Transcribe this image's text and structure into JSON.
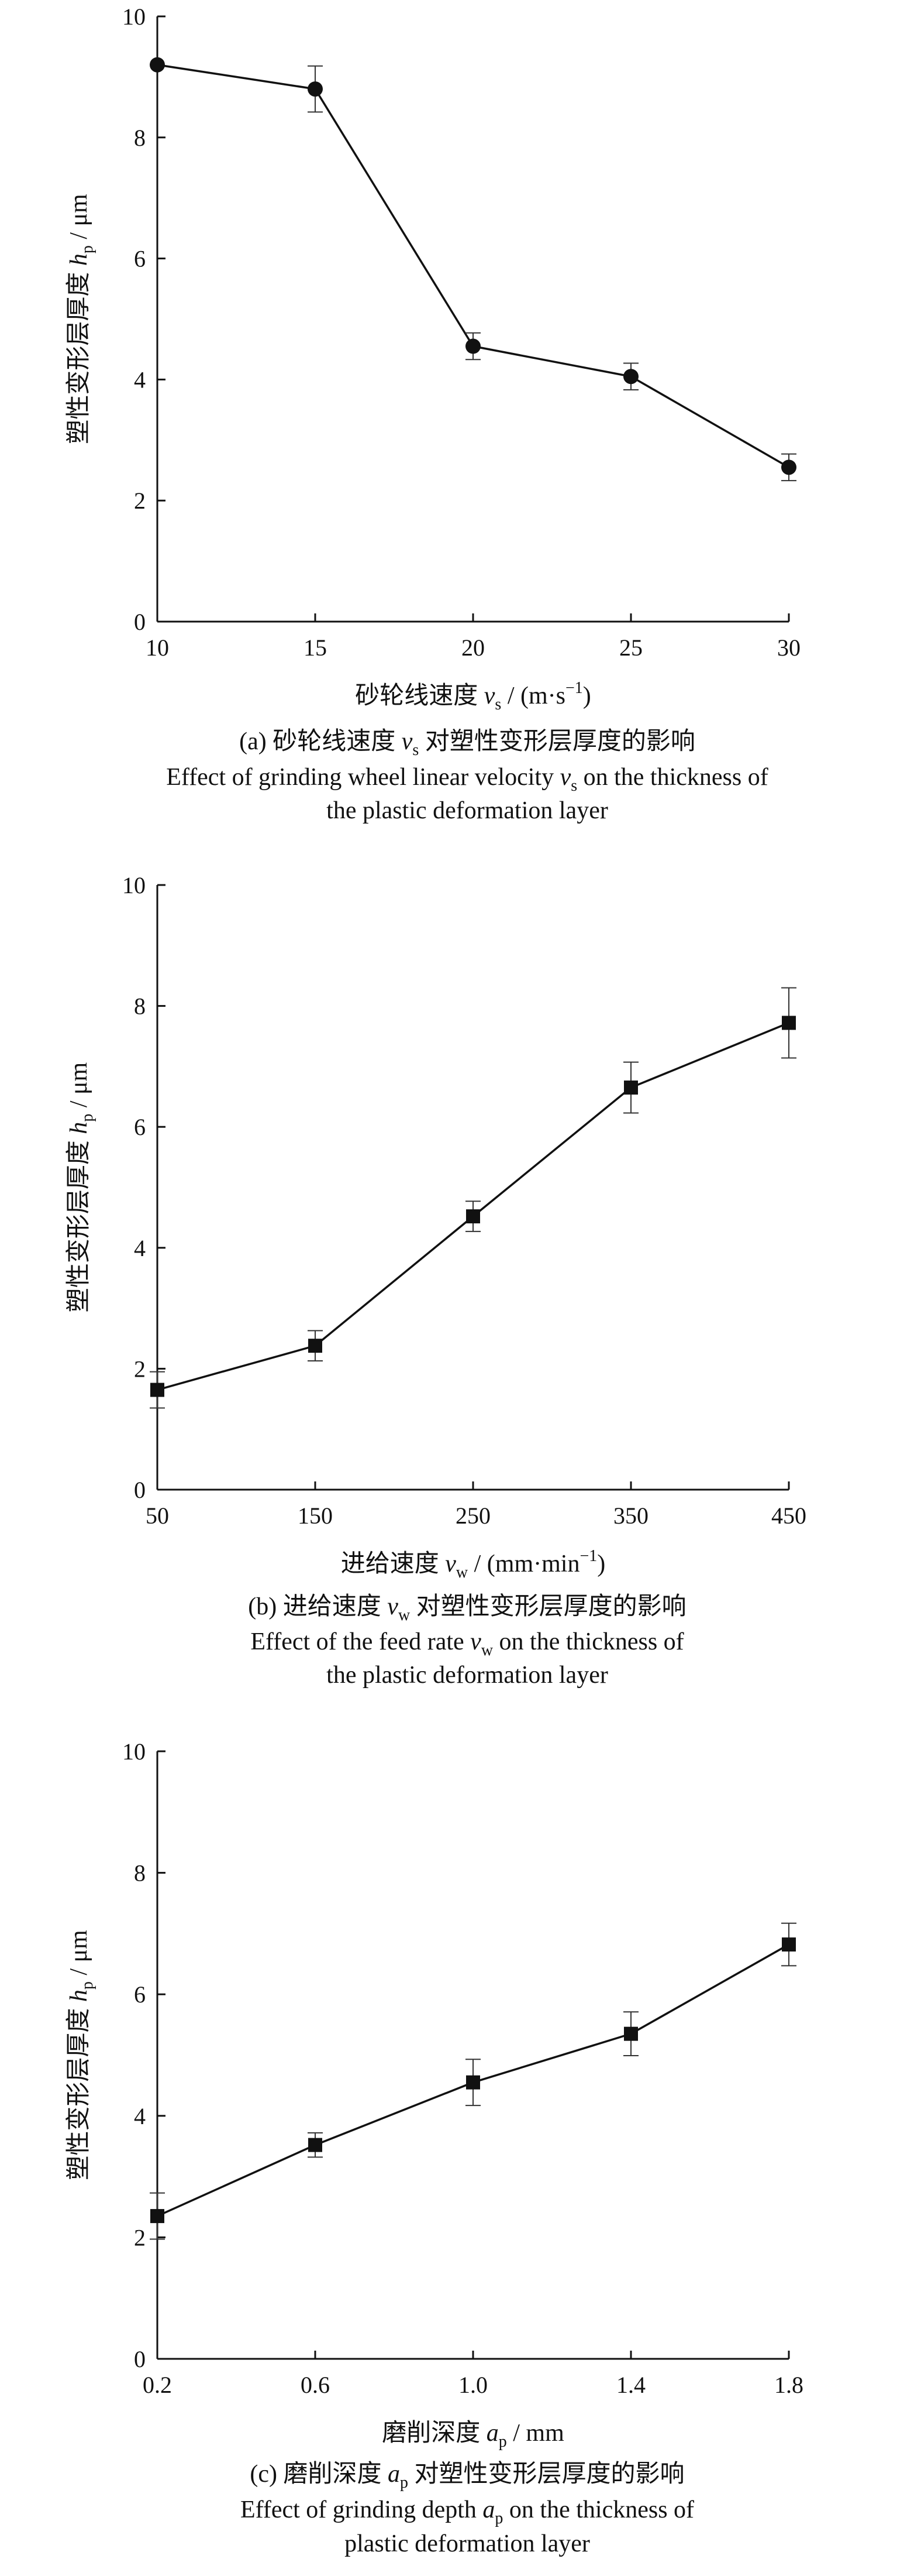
{
  "chart_data": [
    {
      "type": "line",
      "panel": "a",
      "x": [
        10,
        15,
        20,
        25,
        30
      ],
      "series": [
        {
          "values": [
            9.2,
            8.8,
            4.55,
            4.05,
            2.55
          ],
          "errors": [
            0.0,
            0.38,
            0.22,
            0.22,
            0.22
          ]
        }
      ],
      "marker": "circle",
      "xticks": [
        "10",
        "15",
        "20",
        "25",
        "30"
      ],
      "xlim": [
        10,
        30
      ],
      "yticks": [
        "0",
        "2",
        "4",
        "6",
        "8",
        "10"
      ],
      "ylim": [
        0,
        10
      ],
      "xlabel": {
        "main": "砂轮线速度 ",
        "sym": "v",
        "sub": "s",
        "unit": " / (m·s",
        "sup": "−1",
        "close": ")"
      },
      "ylabel": {
        "main": "塑性变形层厚度 ",
        "sym": "h",
        "sub": "p",
        "unit": " / μm"
      },
      "caption": {
        "zh_prefix": "(a) 砂轮线速度 ",
        "zh_sym": "v",
        "zh_sub": "s",
        "zh_suffix": " 对塑性变形层厚度的影响",
        "en1_prefix": "Effect of grinding wheel linear velocity ",
        "en1_sym": "v",
        "en1_sub": "s",
        "en1_suffix": " on the thickness of",
        "en2": "the plastic deformation layer"
      }
    },
    {
      "type": "line",
      "panel": "b",
      "x": [
        50,
        150,
        250,
        350,
        450
      ],
      "series": [
        {
          "values": [
            1.65,
            2.38,
            4.52,
            6.65,
            7.72
          ],
          "errors": [
            0.3,
            0.25,
            0.25,
            0.42,
            0.58
          ]
        }
      ],
      "marker": "square",
      "xticks": [
        "50",
        "150",
        "250",
        "350",
        "450"
      ],
      "xlim": [
        50,
        450
      ],
      "yticks": [
        "0",
        "2",
        "4",
        "6",
        "8",
        "10"
      ],
      "ylim": [
        0,
        10
      ],
      "xlabel": {
        "main": "进给速度 ",
        "sym": "v",
        "sub": "w",
        "unit": " / (mm·min",
        "sup": "−1",
        "close": ")"
      },
      "ylabel": {
        "main": "塑性变形层厚度 ",
        "sym": "h",
        "sub": "p",
        "unit": " / μm"
      },
      "caption": {
        "zh_prefix": "(b) 进给速度 ",
        "zh_sym": "v",
        "zh_sub": "w",
        "zh_suffix": " 对塑性变形层厚度的影响",
        "en1_prefix": "Effect of the feed rate ",
        "en1_sym": "v",
        "en1_sub": "w",
        "en1_suffix": " on the thickness of",
        "en2": "the plastic deformation layer"
      }
    },
    {
      "type": "line",
      "panel": "c",
      "x": [
        0.2,
        0.6,
        1.0,
        1.4,
        1.8
      ],
      "series": [
        {
          "values": [
            2.35,
            3.52,
            4.55,
            5.35,
            6.82
          ],
          "errors": [
            0.38,
            0.2,
            0.38,
            0.36,
            0.35
          ]
        }
      ],
      "marker": "square",
      "xticks": [
        "0.2",
        "0.6",
        "1.0",
        "1.4",
        "1.8"
      ],
      "xlim": [
        0.2,
        1.8
      ],
      "yticks": [
        "0",
        "2",
        "4",
        "6",
        "8",
        "10"
      ],
      "ylim": [
        0,
        10
      ],
      "xlabel": {
        "main": "磨削深度 ",
        "sym": "a",
        "sub": "p",
        "unit": " / mm",
        "sup": "",
        "close": ""
      },
      "ylabel": {
        "main": "塑性变形层厚度 ",
        "sym": "h",
        "sub": "p",
        "unit": " / μm"
      },
      "caption": {
        "zh_prefix": "(c) 磨削深度 ",
        "zh_sym": "a",
        "zh_sub": "p",
        "zh_suffix": " 对塑性变形层厚度的影响",
        "en1_prefix": "Effect of grinding depth ",
        "en1_sym": "a",
        "en1_sub": "p",
        "en1_suffix": " on the thickness of",
        "en2": "plastic deformation layer"
      }
    }
  ]
}
